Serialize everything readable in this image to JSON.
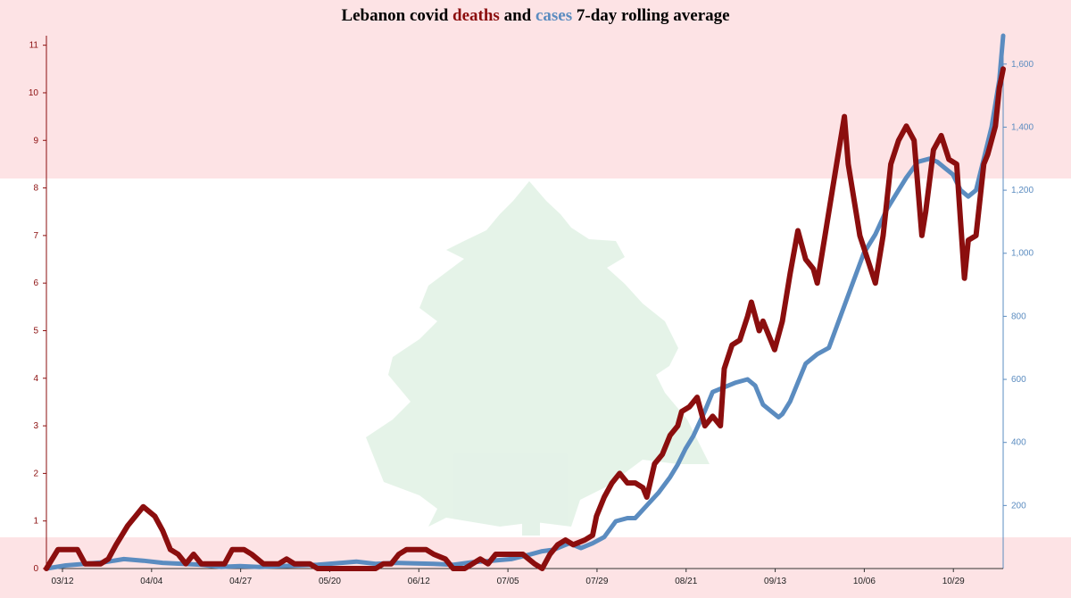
{
  "title": {
    "part1": "Lebanon covid ",
    "deaths_word": "deaths",
    "part2": " and ",
    "cases_word": "cases",
    "part3": " 7-day rolling average"
  },
  "colors": {
    "deaths": "#8b0e0e",
    "cases": "#5b8cc0",
    "background_band": "#fde3e5",
    "cedar": "#d9efe0"
  },
  "chart_data": {
    "type": "line",
    "title": "Lebanon covid deaths and cases 7-day rolling average",
    "x_tick_labels": [
      "03/12",
      "04/04",
      "04/27",
      "05/20",
      "06/12",
      "07/05",
      "07/29",
      "08/21",
      "09/13",
      "10/06",
      "10/29"
    ],
    "x_range_days": [
      0,
      247
    ],
    "left_axis": {
      "series": "deaths",
      "ylim": [
        0,
        11.2
      ],
      "ticks": [
        0,
        1,
        2,
        3,
        4,
        5,
        6,
        7,
        8,
        9,
        10,
        11
      ]
    },
    "right_axis": {
      "series": "cases",
      "ylim": [
        0,
        1690
      ],
      "ticks": [
        200,
        400,
        600,
        800,
        "1,000",
        "1,200",
        "1,400",
        "1,600"
      ]
    },
    "grid": false,
    "series": [
      {
        "name": "deaths",
        "axis": "left",
        "points": [
          [
            0,
            0
          ],
          [
            3,
            0.4
          ],
          [
            8,
            0.4
          ],
          [
            10,
            0.1
          ],
          [
            14,
            0.1
          ],
          [
            16,
            0.2
          ],
          [
            18,
            0.5
          ],
          [
            21,
            0.9
          ],
          [
            23,
            1.1
          ],
          [
            25,
            1.3
          ],
          [
            28,
            1.1
          ],
          [
            30,
            0.8
          ],
          [
            32,
            0.4
          ],
          [
            34,
            0.3
          ],
          [
            36,
            0.1
          ],
          [
            38,
            0.3
          ],
          [
            40,
            0.1
          ],
          [
            43,
            0.1
          ],
          [
            46,
            0.1
          ],
          [
            48,
            0.4
          ],
          [
            51,
            0.4
          ],
          [
            53,
            0.3
          ],
          [
            56,
            0.1
          ],
          [
            60,
            0.1
          ],
          [
            62,
            0.2
          ],
          [
            64,
            0.1
          ],
          [
            68,
            0.1
          ],
          [
            70,
            0
          ],
          [
            73,
            0
          ],
          [
            85,
            0
          ],
          [
            87,
            0.1
          ],
          [
            89,
            0.1
          ],
          [
            91,
            0.3
          ],
          [
            93,
            0.4
          ],
          [
            98,
            0.4
          ],
          [
            100,
            0.3
          ],
          [
            103,
            0.2
          ],
          [
            105,
            0
          ],
          [
            108,
            0
          ],
          [
            110,
            0.1
          ],
          [
            112,
            0.2
          ],
          [
            114,
            0.1
          ],
          [
            116,
            0.3
          ],
          [
            123,
            0.3
          ],
          [
            126,
            0.1
          ],
          [
            128,
            0
          ],
          [
            130,
            0.3
          ],
          [
            132,
            0.5
          ],
          [
            134,
            0.6
          ],
          [
            136,
            0.5
          ],
          [
            139,
            0.6
          ],
          [
            141,
            0.7
          ],
          [
            142,
            1.1
          ],
          [
            144,
            1.5
          ],
          [
            146,
            1.8
          ],
          [
            148,
            2.0
          ],
          [
            150,
            1.8
          ],
          [
            152,
            1.8
          ],
          [
            154,
            1.7
          ],
          [
            155,
            1.5
          ],
          [
            157,
            2.2
          ],
          [
            159,
            2.4
          ],
          [
            161,
            2.8
          ],
          [
            163,
            3.0
          ],
          [
            164,
            3.3
          ],
          [
            166,
            3.4
          ],
          [
            168,
            3.6
          ],
          [
            170,
            3.0
          ],
          [
            172,
            3.2
          ],
          [
            174,
            3.0
          ],
          [
            175,
            4.2
          ],
          [
            177,
            4.7
          ],
          [
            179,
            4.8
          ],
          [
            181,
            5.3
          ],
          [
            182,
            5.6
          ],
          [
            184,
            5.0
          ],
          [
            185,
            5.2
          ],
          [
            187,
            4.8
          ],
          [
            188,
            4.6
          ],
          [
            190,
            5.2
          ],
          [
            192,
            6.2
          ],
          [
            194,
            7.1
          ],
          [
            196,
            6.5
          ],
          [
            198,
            6.3
          ],
          [
            199,
            6.0
          ],
          [
            201,
            7.0
          ],
          [
            203,
            8.0
          ],
          [
            205,
            9.0
          ],
          [
            206,
            9.5
          ],
          [
            207,
            8.5
          ],
          [
            209,
            7.5
          ],
          [
            210,
            7.0
          ],
          [
            212,
            6.5
          ],
          [
            214,
            6.0
          ],
          [
            216,
            7.0
          ],
          [
            218,
            8.5
          ],
          [
            220,
            9.0
          ],
          [
            222,
            9.3
          ],
          [
            224,
            9.0
          ],
          [
            226,
            7.0
          ],
          [
            227,
            7.5
          ],
          [
            229,
            8.8
          ],
          [
            231,
            9.1
          ],
          [
            233,
            8.6
          ],
          [
            235,
            8.5
          ],
          [
            237,
            6.1
          ],
          [
            238,
            6.9
          ],
          [
            240,
            7.0
          ],
          [
            242,
            8.5
          ],
          [
            243,
            8.7
          ],
          [
            245,
            9.3
          ],
          [
            246,
            10.1
          ],
          [
            247,
            10.5
          ]
        ]
      },
      {
        "name": "cases",
        "axis": "right",
        "points": [
          [
            0,
            0
          ],
          [
            5,
            10
          ],
          [
            10,
            15
          ],
          [
            15,
            20
          ],
          [
            20,
            30
          ],
          [
            25,
            25
          ],
          [
            30,
            18
          ],
          [
            40,
            12
          ],
          [
            45,
            5
          ],
          [
            50,
            8
          ],
          [
            55,
            5
          ],
          [
            65,
            10
          ],
          [
            70,
            12
          ],
          [
            80,
            22
          ],
          [
            85,
            15
          ],
          [
            90,
            18
          ],
          [
            100,
            15
          ],
          [
            105,
            12
          ],
          [
            110,
            20
          ],
          [
            115,
            25
          ],
          [
            120,
            30
          ],
          [
            125,
            45
          ],
          [
            128,
            55
          ],
          [
            131,
            60
          ],
          [
            135,
            80
          ],
          [
            138,
            65
          ],
          [
            141,
            80
          ],
          [
            144,
            100
          ],
          [
            147,
            150
          ],
          [
            150,
            160
          ],
          [
            152,
            160
          ],
          [
            155,
            200
          ],
          [
            158,
            240
          ],
          [
            161,
            290
          ],
          [
            163,
            330
          ],
          [
            165,
            380
          ],
          [
            167,
            420
          ],
          [
            170,
            500
          ],
          [
            172,
            560
          ],
          [
            176,
            580
          ],
          [
            178,
            590
          ],
          [
            181,
            600
          ],
          [
            183,
            580
          ],
          [
            185,
            520
          ],
          [
            187,
            500
          ],
          [
            189,
            480
          ],
          [
            190,
            490
          ],
          [
            192,
            530
          ],
          [
            194,
            590
          ],
          [
            196,
            650
          ],
          [
            199,
            680
          ],
          [
            202,
            700
          ],
          [
            205,
            800
          ],
          [
            208,
            900
          ],
          [
            211,
            1000
          ],
          [
            214,
            1060
          ],
          [
            217,
            1140
          ],
          [
            220,
            1200
          ],
          [
            222,
            1240
          ],
          [
            225,
            1290
          ],
          [
            228,
            1300
          ],
          [
            230,
            1290
          ],
          [
            232,
            1270
          ],
          [
            234,
            1250
          ],
          [
            236,
            1200
          ],
          [
            238,
            1180
          ],
          [
            240,
            1200
          ],
          [
            242,
            1300
          ],
          [
            244,
            1400
          ],
          [
            246,
            1550
          ],
          [
            247,
            1690
          ]
        ]
      }
    ]
  }
}
